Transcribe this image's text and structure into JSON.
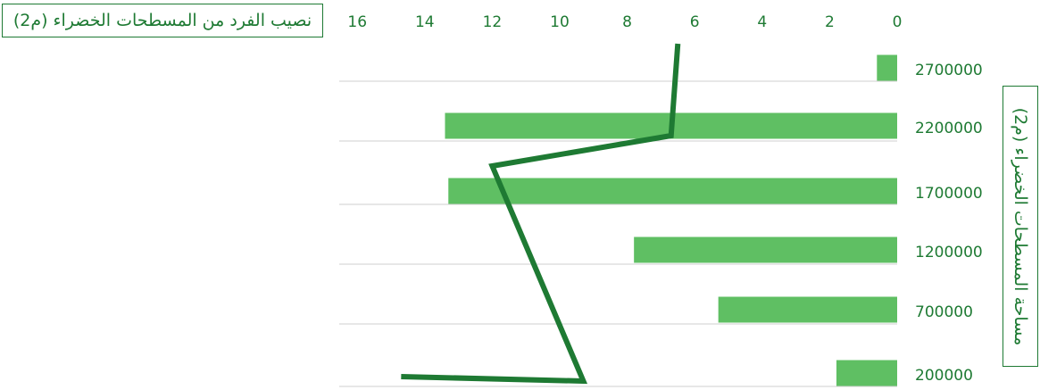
{
  "chart_data": {
    "type": "bar",
    "orientation": "horizontal",
    "x_axis_reversed": true,
    "x_axis_position": "top",
    "top_label": "نصيب الفرد من المسطحات الخضراء (م2)",
    "side_label": "مساحة المسطحات الخضراء (م2)",
    "x_ticks": [
      "16",
      "14",
      "12",
      "10",
      "8",
      "6",
      "4",
      "2",
      "0"
    ],
    "xlim": [
      0,
      16
    ],
    "categories": [
      "2700000",
      "2200000",
      "1700000",
      "1200000",
      "700000",
      "200000"
    ],
    "bar_values": [
      0.6,
      13.4,
      13.3,
      7.8,
      5.3,
      1.8
    ],
    "line_points": [
      {
        "y": "above-2700000",
        "x": 6.5
      },
      {
        "y": "2200000",
        "x": 6.7
      },
      {
        "y": "peak",
        "x": 12.0
      },
      {
        "y": "trough",
        "x": 9.3
      },
      {
        "y": "end",
        "x": 14.7
      }
    ],
    "colors": {
      "bar": "#5fbf63",
      "line": "#1e7a33",
      "text": "#1e7a33",
      "grid": "#cfcfcf"
    },
    "grid": true
  }
}
